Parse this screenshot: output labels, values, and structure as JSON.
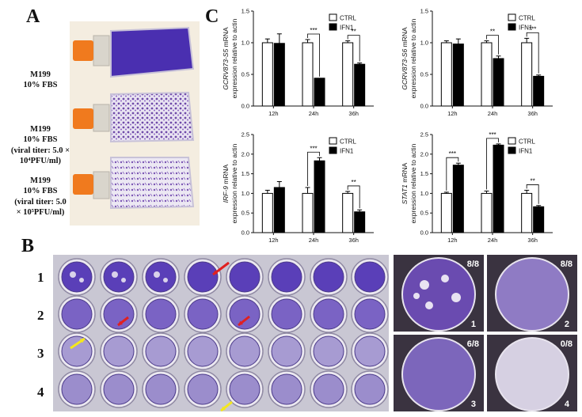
{
  "panels": {
    "a": "A",
    "b": "B",
    "c": "C"
  },
  "panel_a": {
    "conditions": [
      {
        "line1": "M199",
        "line2": "10% FBS",
        "line3": "",
        "line4": ""
      },
      {
        "line1": "M199",
        "line2": "10% FBS",
        "line3": "(viral titer: 5.0 ×",
        "line4": "10⁴PFU/ml)"
      },
      {
        "line1": "M199",
        "line2": "10% FBS",
        "line3": "(viral titer: 5.0",
        "line4": "× 10⁵PFU/ml)"
      }
    ],
    "colors": {
      "cap": "#f07a1e",
      "stain_dense": "#4a2fb0",
      "stain_sparse": "#7a4fb8"
    }
  },
  "panel_b": {
    "rows": [
      "1",
      "2",
      "3",
      "4"
    ],
    "closeups": [
      {
        "ratio": "8/8",
        "id": "1"
      },
      {
        "ratio": "8/8",
        "id": "2"
      },
      {
        "ratio": "6/8",
        "id": "3"
      },
      {
        "ratio": "0/8",
        "id": "4"
      }
    ]
  },
  "chart_data": [
    {
      "type": "bar",
      "ylabel": "GCRV873-S5 mRNA expression relative to actin",
      "ylabel_gene": "GCRV873-S5",
      "ylabel_rest": " mRNA",
      "ylabel2": "expression relative to actin",
      "categories": [
        "12h",
        "24h",
        "36h"
      ],
      "ylim": [
        0,
        1.5
      ],
      "yticks": [
        "0.0",
        "0.5",
        "1.0",
        "1.5"
      ],
      "series": [
        {
          "name": "CTRL",
          "values": [
            1.0,
            1.0,
            1.0
          ],
          "errors": [
            0.06,
            0.05,
            0.03
          ]
        },
        {
          "name": "IFN1",
          "values": [
            0.99,
            0.44,
            0.66
          ],
          "errors": [
            0.15,
            0.0,
            0.02
          ]
        }
      ],
      "significance": [
        "",
        "***",
        "**"
      ]
    },
    {
      "type": "bar",
      "ylabel": "GCRV873-S6 mRNA expression relative to actin",
      "ylabel_gene": "GCRV873-S6",
      "ylabel_rest": " mRNA",
      "ylabel2": "expression relative to actin",
      "categories": [
        "12h",
        "24h",
        "36h"
      ],
      "ylim": [
        0,
        1.5
      ],
      "yticks": [
        "0.0",
        "0.5",
        "1.0",
        "1.5"
      ],
      "series": [
        {
          "name": "CTRL",
          "values": [
            1.0,
            1.0,
            1.0
          ],
          "errors": [
            0.03,
            0.03,
            0.07
          ]
        },
        {
          "name": "IFN1",
          "values": [
            0.98,
            0.75,
            0.47
          ],
          "errors": [
            0.08,
            0.04,
            0.02
          ]
        }
      ],
      "significance": [
        "",
        "**",
        "***"
      ]
    },
    {
      "type": "bar",
      "ylabel": "IRF-9 mRNA expression relative to actin",
      "ylabel_gene": "IRF-9",
      "ylabel_rest": " mRNA",
      "ylabel2": "expression relative to actin",
      "categories": [
        "12h",
        "24h",
        "36h"
      ],
      "ylim": [
        0,
        2.5
      ],
      "yticks": [
        "0.0",
        "0.5",
        "1.0",
        "1.5",
        "2.0",
        "2.5"
      ],
      "series": [
        {
          "name": "CTRL",
          "values": [
            1.0,
            1.0,
            1.0
          ],
          "errors": [
            0.08,
            0.15,
            0.05
          ]
        },
        {
          "name": "IFN1",
          "values": [
            1.15,
            1.83,
            0.53
          ],
          "errors": [
            0.15,
            0.08,
            0.05
          ]
        }
      ],
      "significance": [
        "",
        "***",
        "**"
      ]
    },
    {
      "type": "bar",
      "ylabel": "STAT1 mRNA expression relative to actin",
      "ylabel_gene": "STAT1",
      "ylabel_rest": " mRNA",
      "ylabel2": "expression relative to actin",
      "categories": [
        "12h",
        "24h",
        "36h"
      ],
      "ylim": [
        0,
        2.5
      ],
      "yticks": [
        "0.0",
        "0.5",
        "1.0",
        "1.5",
        "2.0",
        "2.5"
      ],
      "series": [
        {
          "name": "CTRL",
          "values": [
            1.0,
            1.0,
            1.0
          ],
          "errors": [
            0.03,
            0.06,
            0.08
          ]
        },
        {
          "name": "IFN1",
          "values": [
            1.72,
            2.23,
            0.66
          ],
          "errors": [
            0.05,
            0.03,
            0.03
          ]
        }
      ],
      "significance": [
        "***",
        "***",
        "**"
      ]
    }
  ]
}
